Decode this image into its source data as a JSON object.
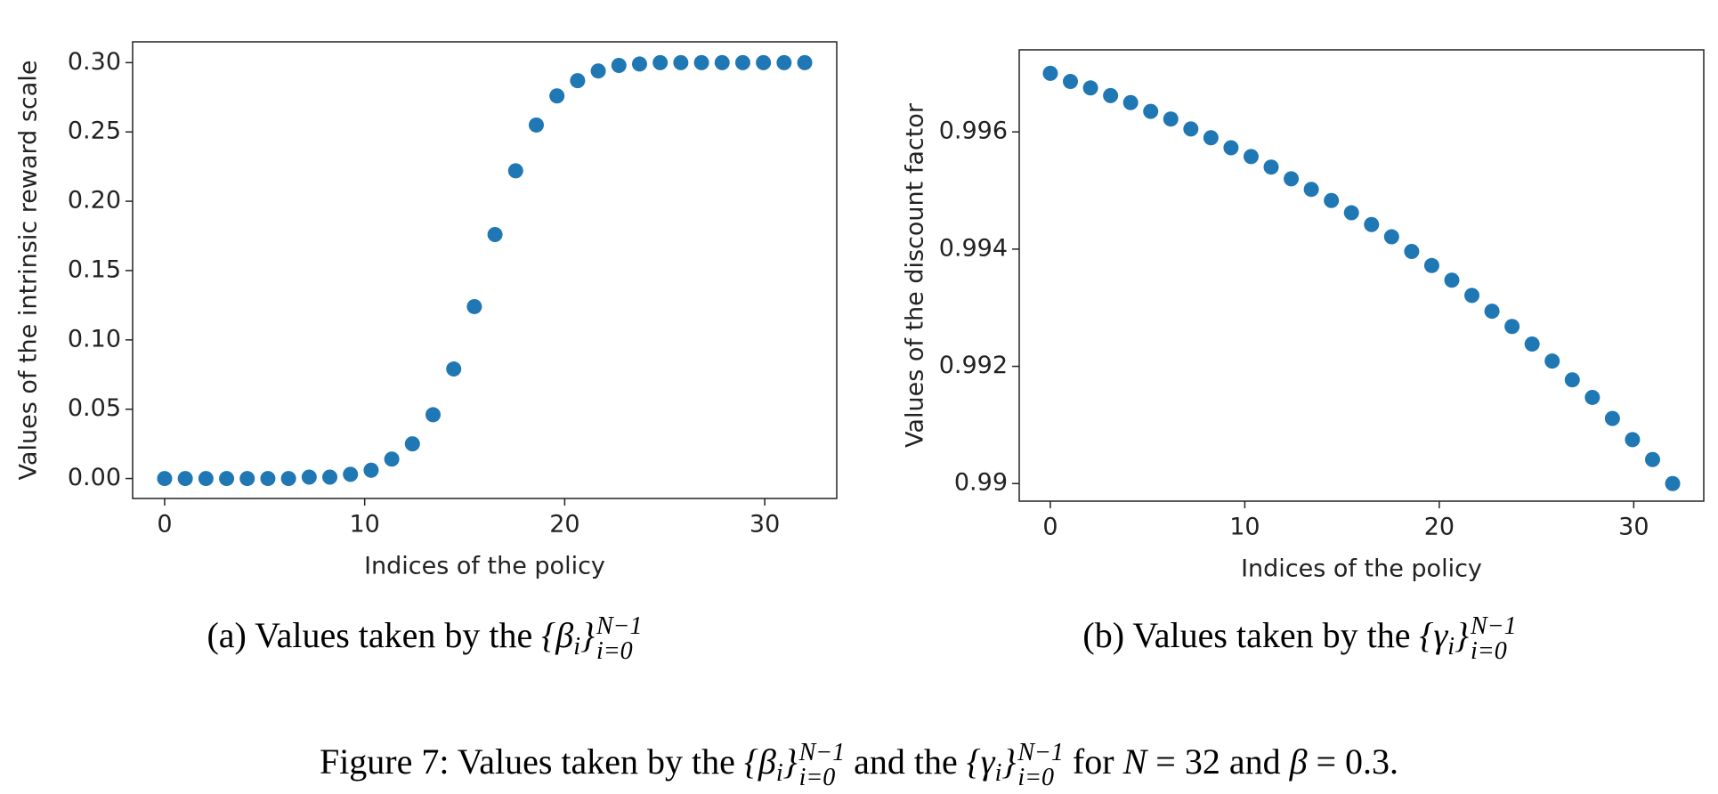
{
  "chart_data": [
    {
      "type": "scatter",
      "xlabel": "Indices of the policy",
      "ylabel": "Values of the intrinsic reward scale",
      "caption": {
        "label": "(a)",
        "text": "Values taken by the",
        "math": {
          "open": "{β",
          "index": "i",
          "close": "}",
          "sup": "N−1",
          "sub": "i=0"
        }
      },
      "color": "#1f77b4",
      "x": [
        0,
        1.032,
        2.065,
        3.097,
        4.129,
        5.161,
        6.194,
        7.226,
        8.258,
        9.29,
        10.323,
        11.355,
        12.387,
        13.419,
        14.452,
        15.484,
        16.516,
        17.548,
        18.581,
        19.613,
        20.645,
        21.677,
        22.71,
        23.742,
        24.774,
        25.806,
        26.839,
        27.871,
        28.903,
        29.935,
        30.968,
        32
      ],
      "values": [
        0,
        0,
        0,
        0,
        0,
        0,
        0,
        0.001,
        0.001,
        0.003,
        0.006,
        0.014,
        0.025,
        0.046,
        0.079,
        0.124,
        0.176,
        0.222,
        0.255,
        0.276,
        0.287,
        0.294,
        0.298,
        0.299,
        0.3,
        0.3,
        0.3,
        0.3,
        0.3,
        0.3,
        0.3,
        0.3
      ],
      "xlim": [
        -1.6,
        33.6
      ],
      "xticks": [
        0,
        10,
        20,
        30
      ],
      "ylim": [
        -0.0144,
        0.315
      ],
      "yticks": [
        {
          "value": 0,
          "label": "0.00"
        },
        {
          "value": 0.05,
          "label": "0.05"
        },
        {
          "value": 0.1,
          "label": "0.10"
        },
        {
          "value": 0.15,
          "label": "0.15"
        },
        {
          "value": 0.2,
          "label": "0.20"
        },
        {
          "value": 0.25,
          "label": "0.25"
        },
        {
          "value": 0.3,
          "label": "0.30"
        }
      ]
    },
    {
      "type": "scatter",
      "xlabel": "Indices of the policy",
      "ylabel": "Values of the discount factor",
      "caption": {
        "label": "(b)",
        "text": "Values taken by the",
        "math": {
          "open": "{γ",
          "index": "i",
          "close": "}",
          "sup": "N−1",
          "sub": "i=0"
        }
      },
      "color": "#1f77b4",
      "x": [
        0,
        1.032,
        2.065,
        3.097,
        4.129,
        5.161,
        6.194,
        7.226,
        8.258,
        9.29,
        10.323,
        11.355,
        12.387,
        13.419,
        14.452,
        15.484,
        16.516,
        17.548,
        18.581,
        19.613,
        20.645,
        21.677,
        22.71,
        23.742,
        24.774,
        25.806,
        26.839,
        27.871,
        28.903,
        29.935,
        30.968,
        32
      ],
      "values": [
        0.997,
        0.99686,
        0.99675,
        0.99662,
        0.9965,
        0.99635,
        0.99622,
        0.99605,
        0.9959,
        0.99573,
        0.99558,
        0.9954,
        0.9952,
        0.99502,
        0.99483,
        0.99462,
        0.99442,
        0.99421,
        0.99396,
        0.99372,
        0.99347,
        0.99321,
        0.99294,
        0.99268,
        0.99238,
        0.99209,
        0.99177,
        0.99147,
        0.99111,
        0.99075,
        0.99041,
        0.99
      ],
      "xlim": [
        -1.6,
        33.6
      ],
      "xticks": [
        0,
        10,
        20,
        30
      ],
      "ylim": [
        0.9897,
        0.9974
      ],
      "yticks": [
        0.99,
        0.992,
        0.994,
        0.996
      ]
    }
  ],
  "figure_caption": [
    {
      "text": "Figure 7: Values taken by the "
    },
    {
      "math": {
        "open": "{β",
        "index": "i",
        "close": "}",
        "sup": "N−1",
        "sub": "i=0"
      }
    },
    {
      "text": " and the "
    },
    {
      "math": {
        "open": "{γ",
        "index": "i",
        "close": "}",
        "sup": "N−1",
        "sub": "i=0"
      }
    },
    {
      "text": " for "
    },
    {
      "italic": "N"
    },
    {
      "text": " = 32 and "
    },
    {
      "italic": "β"
    },
    {
      "text": " = 0.3."
    }
  ]
}
